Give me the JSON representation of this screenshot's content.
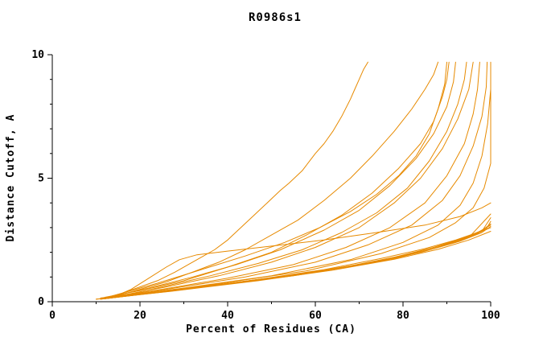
{
  "chart_data": {
    "type": "line",
    "title": "R0986s1",
    "xlabel": "Percent of Residues (CA)",
    "ylabel": "Distance Cutoff, A",
    "xlim": [
      0,
      100
    ],
    "ylim": [
      0,
      10
    ],
    "xticks": [
      0,
      20,
      40,
      60,
      80,
      100
    ],
    "yticks": [
      0,
      5,
      10
    ],
    "x_minor_ticks": [
      10,
      30,
      50,
      70,
      90
    ],
    "y_minor_ticks": [
      1,
      2,
      3,
      4,
      6,
      7,
      8,
      9
    ],
    "grid": false,
    "legend": "none",
    "line_color": "#e78a00",
    "axis_color": "#000000",
    "background": "#ffffff",
    "series": [
      {
        "points": [
          [
            13,
            0.2
          ],
          [
            16,
            0.35
          ],
          [
            20,
            0.6
          ],
          [
            24,
            0.85
          ],
          [
            28,
            1.2
          ],
          [
            31,
            1.5
          ],
          [
            34,
            1.8
          ],
          [
            37,
            2.1
          ],
          [
            40,
            2.5
          ],
          [
            43,
            3.0
          ],
          [
            46,
            3.5
          ],
          [
            49,
            4.0
          ],
          [
            52,
            4.5
          ],
          [
            54,
            4.8
          ],
          [
            57,
            5.3
          ],
          [
            60,
            6.0
          ],
          [
            62,
            6.4
          ],
          [
            64,
            6.9
          ],
          [
            66,
            7.5
          ],
          [
            68,
            8.2
          ],
          [
            69,
            8.6
          ],
          [
            70,
            9.0
          ],
          [
            71,
            9.4
          ],
          [
            72,
            9.7
          ]
        ]
      },
      {
        "points": [
          [
            14,
            0.2
          ],
          [
            20,
            0.5
          ],
          [
            26,
            0.8
          ],
          [
            32,
            1.2
          ],
          [
            38,
            1.6
          ],
          [
            44,
            2.1
          ],
          [
            50,
            2.7
          ],
          [
            56,
            3.3
          ],
          [
            62,
            4.1
          ],
          [
            68,
            5.0
          ],
          [
            73,
            5.9
          ],
          [
            78,
            6.9
          ],
          [
            82,
            7.8
          ],
          [
            85,
            8.6
          ],
          [
            87,
            9.2
          ],
          [
            88,
            9.7
          ]
        ]
      },
      {
        "points": [
          [
            12,
            0.18
          ],
          [
            20,
            0.45
          ],
          [
            30,
            0.85
          ],
          [
            40,
            1.4
          ],
          [
            50,
            2.0
          ],
          [
            58,
            2.7
          ],
          [
            66,
            3.5
          ],
          [
            73,
            4.4
          ],
          [
            79,
            5.4
          ],
          [
            84,
            6.4
          ],
          [
            87,
            7.3
          ],
          [
            89,
            8.3
          ],
          [
            90,
            9.0
          ],
          [
            90.5,
            9.7
          ]
        ]
      },
      {
        "points": [
          [
            13,
            0.2
          ],
          [
            22,
            0.55
          ],
          [
            32,
            1.0
          ],
          [
            42,
            1.5
          ],
          [
            52,
            2.1
          ],
          [
            62,
            2.9
          ],
          [
            70,
            3.7
          ],
          [
            77,
            4.7
          ],
          [
            83,
            5.8
          ],
          [
            87,
            6.8
          ],
          [
            90,
            7.9
          ],
          [
            91.5,
            8.9
          ],
          [
            92,
            9.7
          ]
        ]
      },
      {
        "points": [
          [
            15,
            0.2
          ],
          [
            25,
            0.6
          ],
          [
            36,
            1.05
          ],
          [
            47,
            1.55
          ],
          [
            57,
            2.1
          ],
          [
            66,
            2.8
          ],
          [
            74,
            3.6
          ],
          [
            81,
            4.6
          ],
          [
            86,
            5.7
          ],
          [
            90,
            6.9
          ],
          [
            92.5,
            8.0
          ],
          [
            94,
            9.0
          ],
          [
            94.5,
            9.7
          ]
        ]
      },
      {
        "points": [
          [
            14,
            0.2
          ],
          [
            26,
            0.6
          ],
          [
            38,
            1.05
          ],
          [
            50,
            1.6
          ],
          [
            60,
            2.2
          ],
          [
            70,
            3.0
          ],
          [
            78,
            4.0
          ],
          [
            84,
            5.0
          ],
          [
            89,
            6.2
          ],
          [
            92.5,
            7.4
          ],
          [
            95,
            8.6
          ],
          [
            96,
            9.7
          ]
        ]
      },
      {
        "points": [
          [
            12,
            0.15
          ],
          [
            25,
            0.5
          ],
          [
            40,
            0.95
          ],
          [
            55,
            1.5
          ],
          [
            67,
            2.2
          ],
          [
            77,
            3.0
          ],
          [
            85,
            4.0
          ],
          [
            90,
            5.1
          ],
          [
            94,
            6.4
          ],
          [
            96,
            7.6
          ],
          [
            97,
            8.6
          ],
          [
            97.5,
            9.7
          ]
        ]
      },
      {
        "points": [
          [
            11,
            0.15
          ],
          [
            26,
            0.5
          ],
          [
            44,
            1.0
          ],
          [
            60,
            1.6
          ],
          [
            72,
            2.3
          ],
          [
            82,
            3.1
          ],
          [
            89,
            4.1
          ],
          [
            93,
            5.1
          ],
          [
            96,
            6.3
          ],
          [
            98,
            7.5
          ],
          [
            99,
            8.7
          ],
          [
            99.2,
            9.7
          ]
        ]
      },
      {
        "points": [
          [
            12,
            0.15
          ],
          [
            30,
            0.55
          ],
          [
            50,
            1.05
          ],
          [
            68,
            1.7
          ],
          [
            80,
            2.4
          ],
          [
            88,
            3.1
          ],
          [
            93,
            3.9
          ],
          [
            96,
            4.8
          ],
          [
            98,
            5.9
          ],
          [
            99.3,
            7.2
          ],
          [
            100,
            8.6
          ],
          [
            100,
            9.7
          ]
        ]
      },
      {
        "points": [
          [
            13,
            0.18
          ],
          [
            35,
            0.65
          ],
          [
            58,
            1.25
          ],
          [
            75,
            1.95
          ],
          [
            86,
            2.6
          ],
          [
            92,
            3.2
          ],
          [
            96,
            3.8
          ],
          [
            98.5,
            4.6
          ],
          [
            100,
            5.6
          ],
          [
            100,
            9.6
          ]
        ]
      },
      {
        "points": [
          [
            11,
            0.1
          ],
          [
            25,
            0.4
          ],
          [
            45,
            0.85
          ],
          [
            62,
            1.3
          ],
          [
            75,
            1.75
          ],
          [
            85,
            2.15
          ],
          [
            92,
            2.5
          ],
          [
            97,
            2.8
          ],
          [
            100,
            3.1
          ]
        ]
      },
      {
        "points": [
          [
            12,
            0.12
          ],
          [
            28,
            0.45
          ],
          [
            48,
            0.9
          ],
          [
            65,
            1.35
          ],
          [
            78,
            1.8
          ],
          [
            87,
            2.2
          ],
          [
            94,
            2.6
          ],
          [
            99,
            2.95
          ],
          [
            100,
            3.25
          ]
        ]
      },
      {
        "points": [
          [
            10,
            0.1
          ],
          [
            30,
            0.5
          ],
          [
            52,
            1.0
          ],
          [
            70,
            1.5
          ],
          [
            82,
            1.95
          ],
          [
            90,
            2.35
          ],
          [
            96,
            2.7
          ],
          [
            100,
            3.0
          ]
        ]
      },
      {
        "points": [
          [
            12,
            0.12
          ],
          [
            32,
            0.55
          ],
          [
            55,
            1.05
          ],
          [
            72,
            1.55
          ],
          [
            84,
            2.0
          ],
          [
            92,
            2.4
          ],
          [
            97,
            2.75
          ],
          [
            100,
            3.15
          ]
        ]
      },
      {
        "points": [
          [
            11,
            0.1
          ],
          [
            34,
            0.6
          ],
          [
            58,
            1.15
          ],
          [
            75,
            1.65
          ],
          [
            86,
            2.1
          ],
          [
            93,
            2.5
          ],
          [
            98,
            2.85
          ],
          [
            100,
            3.4
          ]
        ]
      },
      {
        "points": [
          [
            13,
            0.15
          ],
          [
            36,
            0.65
          ],
          [
            60,
            1.2
          ],
          [
            77,
            1.7
          ],
          [
            88,
            2.2
          ],
          [
            95,
            2.6
          ],
          [
            100,
            3.55
          ]
        ]
      },
      {
        "points": [
          [
            10,
            0.1
          ],
          [
            27,
            0.42
          ],
          [
            47,
            0.85
          ],
          [
            64,
            1.28
          ],
          [
            78,
            1.72
          ],
          [
            88,
            2.12
          ],
          [
            95,
            2.5
          ],
          [
            100,
            2.85
          ]
        ]
      },
      {
        "points": [
          [
            12,
            0.12
          ],
          [
            33,
            0.58
          ],
          [
            56,
            1.1
          ],
          [
            73,
            1.6
          ],
          [
            85,
            2.05
          ],
          [
            93,
            2.45
          ],
          [
            98,
            2.8
          ],
          [
            100,
            3.05
          ]
        ]
      },
      {
        "points": [
          [
            14,
            0.2
          ],
          [
            18,
            0.5
          ],
          [
            22,
            0.95
          ],
          [
            26,
            1.4
          ],
          [
            29,
            1.7
          ],
          [
            33,
            1.9
          ],
          [
            40,
            2.05
          ],
          [
            50,
            2.25
          ],
          [
            62,
            2.5
          ],
          [
            74,
            2.8
          ],
          [
            85,
            3.1
          ],
          [
            93,
            3.45
          ],
          [
            98,
            3.8
          ],
          [
            100,
            4.0
          ]
        ]
      },
      {
        "points": [
          [
            13,
            0.2
          ],
          [
            24,
            0.75
          ],
          [
            34,
            1.3
          ],
          [
            44,
            1.85
          ],
          [
            53,
            2.4
          ],
          [
            61,
            3.0
          ],
          [
            68,
            3.65
          ],
          [
            74,
            4.35
          ],
          [
            79,
            5.1
          ],
          [
            83,
            5.9
          ],
          [
            86,
            6.8
          ],
          [
            88,
            7.8
          ],
          [
            89.5,
            8.8
          ],
          [
            90,
            9.7
          ]
        ]
      }
    ]
  }
}
